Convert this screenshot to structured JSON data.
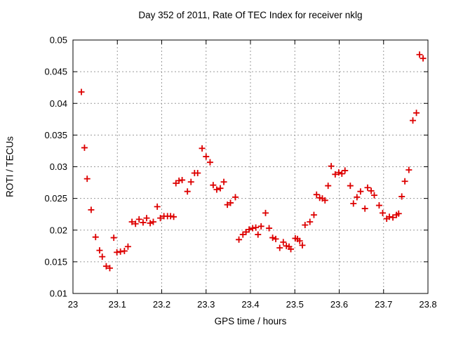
{
  "chart_data": {
    "type": "scatter",
    "title": "Day 352 of 2011, Rate Of TEC Index for receiver nklg",
    "xlabel": "GPS time / hours",
    "ylabel": "ROTI / TECUs",
    "xlim": [
      23,
      23.8
    ],
    "ylim": [
      0.01,
      0.05
    ],
    "xticks": [
      23,
      23.1,
      23.2,
      23.3,
      23.4,
      23.5,
      23.6,
      23.7,
      23.8
    ],
    "yticks": [
      0.01,
      0.015,
      0.02,
      0.025,
      0.03,
      0.035,
      0.04,
      0.045,
      0.05
    ],
    "grid": true,
    "legend_position": "none",
    "marker": {
      "shape": "plus",
      "color": "#dd0000",
      "size": 9
    },
    "grid_color": "#9a9a9a",
    "axis_color": "#000000",
    "background_color": "#ffffff",
    "points": [
      [
        23.019,
        0.0418
      ],
      [
        23.026,
        0.033
      ],
      [
        23.032,
        0.0281
      ],
      [
        23.041,
        0.0232
      ],
      [
        23.051,
        0.0189
      ],
      [
        23.06,
        0.0168
      ],
      [
        23.066,
        0.0158
      ],
      [
        23.075,
        0.0143
      ],
      [
        23.083,
        0.014
      ],
      [
        23.092,
        0.0188
      ],
      [
        23.099,
        0.0165
      ],
      [
        23.107,
        0.0166
      ],
      [
        23.116,
        0.0167
      ],
      [
        23.124,
        0.0174
      ],
      [
        23.133,
        0.0213
      ],
      [
        23.141,
        0.021
      ],
      [
        23.149,
        0.0217
      ],
      [
        23.158,
        0.0212
      ],
      [
        23.166,
        0.0219
      ],
      [
        23.174,
        0.0211
      ],
      [
        23.181,
        0.0213
      ],
      [
        23.19,
        0.0237
      ],
      [
        23.197,
        0.0219
      ],
      [
        23.205,
        0.0222
      ],
      [
        23.213,
        0.0222
      ],
      [
        23.22,
        0.0222
      ],
      [
        23.227,
        0.0221
      ],
      [
        23.232,
        0.0274
      ],
      [
        23.239,
        0.0278
      ],
      [
        23.246,
        0.0279
      ],
      [
        23.258,
        0.0261
      ],
      [
        23.266,
        0.0276
      ],
      [
        23.274,
        0.029
      ],
      [
        23.281,
        0.029
      ],
      [
        23.291,
        0.0329
      ],
      [
        23.3,
        0.0316
      ],
      [
        23.309,
        0.0307
      ],
      [
        23.316,
        0.0271
      ],
      [
        23.324,
        0.0264
      ],
      [
        23.332,
        0.0266
      ],
      [
        23.34,
        0.0276
      ],
      [
        23.348,
        0.024
      ],
      [
        23.355,
        0.0243
      ],
      [
        23.366,
        0.0252
      ],
      [
        23.374,
        0.0185
      ],
      [
        23.383,
        0.0193
      ],
      [
        23.39,
        0.0197
      ],
      [
        23.397,
        0.0201
      ],
      [
        23.405,
        0.0203
      ],
      [
        23.412,
        0.0204
      ],
      [
        23.417,
        0.0193
      ],
      [
        23.424,
        0.0206
      ],
      [
        23.434,
        0.0227
      ],
      [
        23.442,
        0.0203
      ],
      [
        23.45,
        0.0188
      ],
      [
        23.457,
        0.0186
      ],
      [
        23.466,
        0.0172
      ],
      [
        23.474,
        0.0181
      ],
      [
        23.481,
        0.0175
      ],
      [
        23.487,
        0.0174
      ],
      [
        23.491,
        0.017
      ],
      [
        23.501,
        0.0187
      ],
      [
        23.506,
        0.0186
      ],
      [
        23.511,
        0.0183
      ],
      [
        23.517,
        0.0176
      ],
      [
        23.523,
        0.0208
      ],
      [
        23.534,
        0.0213
      ],
      [
        23.543,
        0.0224
      ],
      [
        23.549,
        0.0256
      ],
      [
        23.556,
        0.0251
      ],
      [
        23.562,
        0.025
      ],
      [
        23.568,
        0.0247
      ],
      [
        23.575,
        0.027
      ],
      [
        23.582,
        0.0301
      ],
      [
        23.591,
        0.0288
      ],
      [
        23.599,
        0.0291
      ],
      [
        23.606,
        0.0289
      ],
      [
        23.613,
        0.0294
      ],
      [
        23.625,
        0.027
      ],
      [
        23.632,
        0.0242
      ],
      [
        23.64,
        0.0252
      ],
      [
        23.648,
        0.0261
      ],
      [
        23.658,
        0.0234
      ],
      [
        23.664,
        0.0267
      ],
      [
        23.672,
        0.0262
      ],
      [
        23.679,
        0.0255
      ],
      [
        23.69,
        0.0239
      ],
      [
        23.698,
        0.0227
      ],
      [
        23.707,
        0.0218
      ],
      [
        23.713,
        0.0221
      ],
      [
        23.721,
        0.022
      ],
      [
        23.729,
        0.0224
      ],
      [
        23.734,
        0.0226
      ],
      [
        23.741,
        0.0253
      ],
      [
        23.748,
        0.0277
      ],
      [
        23.757,
        0.0295
      ],
      [
        23.766,
        0.0373
      ],
      [
        23.774,
        0.0385
      ],
      [
        23.781,
        0.0477
      ],
      [
        23.789,
        0.0471
      ]
    ]
  }
}
